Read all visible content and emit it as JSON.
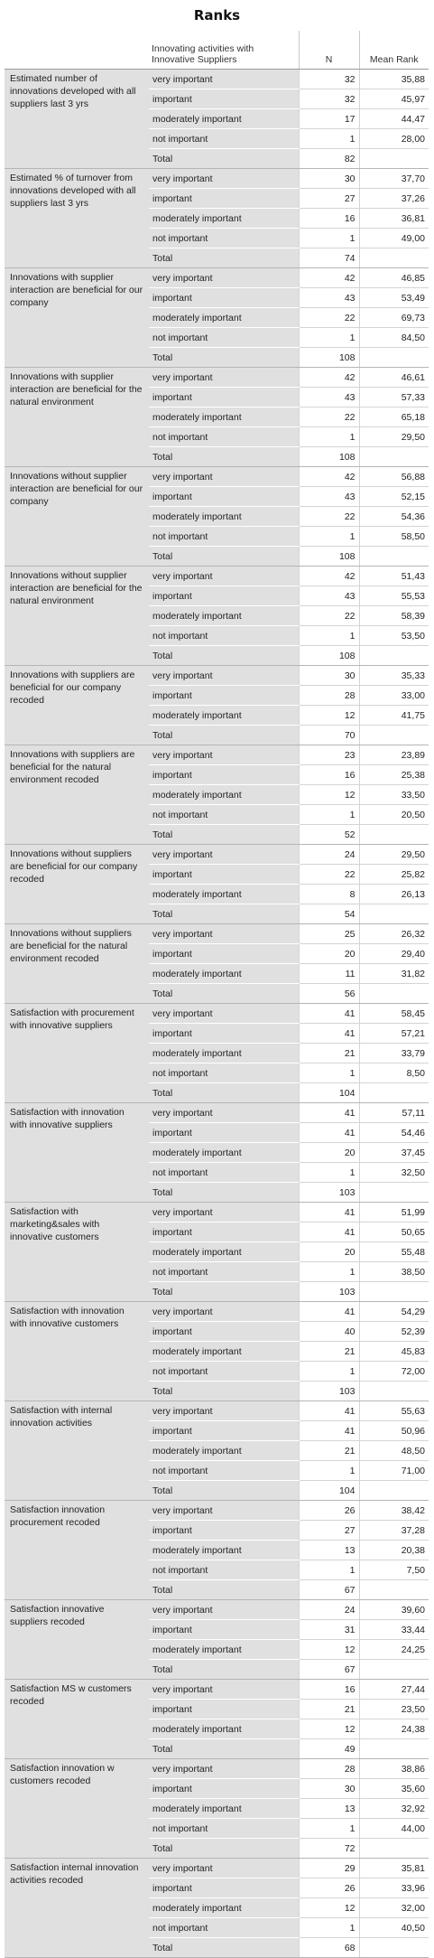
{
  "title": "Ranks",
  "header": {
    "group_label": "Innovating activities with Innovative Suppliers",
    "n_label": "N",
    "mean_rank_label": "Mean Rank"
  },
  "groups": [
    {
      "variable": "Estimated number of innovations developed with all suppliers last 3 yrs",
      "rows": [
        [
          "very important",
          "32",
          "35,88"
        ],
        [
          "important",
          "32",
          "45,97"
        ],
        [
          "moderately important",
          "17",
          "44,47"
        ],
        [
          "not important",
          "1",
          "28,00"
        ],
        [
          "Total",
          "82",
          ""
        ]
      ]
    },
    {
      "variable": "Estimated % of turnover from innovations developed with all suppliers last 3 yrs",
      "rows": [
        [
          "very important",
          "30",
          "37,70"
        ],
        [
          "important",
          "27",
          "37,26"
        ],
        [
          "moderately important",
          "16",
          "36,81"
        ],
        [
          "not important",
          "1",
          "49,00"
        ],
        [
          "Total",
          "74",
          ""
        ]
      ]
    },
    {
      "variable": "Innovations with supplier interaction are beneficial for our company",
      "rows": [
        [
          "very important",
          "42",
          "46,85"
        ],
        [
          "important",
          "43",
          "53,49"
        ],
        [
          "moderately important",
          "22",
          "69,73"
        ],
        [
          "not important",
          "1",
          "84,50"
        ],
        [
          "Total",
          "108",
          ""
        ]
      ]
    },
    {
      "variable": "Innovations with supplier interaction are beneficial for the natural environment",
      "rows": [
        [
          "very important",
          "42",
          "46,61"
        ],
        [
          "important",
          "43",
          "57,33"
        ],
        [
          "moderately important",
          "22",
          "65,18"
        ],
        [
          "not important",
          "1",
          "29,50"
        ],
        [
          "Total",
          "108",
          ""
        ]
      ]
    },
    {
      "variable": "Innovations without supplier interaction are beneficial for our company",
      "rows": [
        [
          "very important",
          "42",
          "56,88"
        ],
        [
          "important",
          "43",
          "52,15"
        ],
        [
          "moderately important",
          "22",
          "54,36"
        ],
        [
          "not important",
          "1",
          "58,50"
        ],
        [
          "Total",
          "108",
          ""
        ]
      ]
    },
    {
      "variable": "Innovations without supplier interaction are beneficial for the natural environment",
      "rows": [
        [
          "very important",
          "42",
          "51,43"
        ],
        [
          "important",
          "43",
          "55,53"
        ],
        [
          "moderately important",
          "22",
          "58,39"
        ],
        [
          "not important",
          "1",
          "53,50"
        ],
        [
          "Total",
          "108",
          ""
        ]
      ]
    },
    {
      "variable": "Innovations with suppliers are beneficial for our company recoded",
      "rows": [
        [
          "very important",
          "30",
          "35,33"
        ],
        [
          "important",
          "28",
          "33,00"
        ],
        [
          "moderately important",
          "12",
          "41,75"
        ],
        [
          "Total",
          "70",
          ""
        ]
      ]
    },
    {
      "variable": "Innovations with suppliers are beneficial for the natural environment recoded",
      "rows": [
        [
          "very important",
          "23",
          "23,89"
        ],
        [
          "important",
          "16",
          "25,38"
        ],
        [
          "moderately important",
          "12",
          "33,50"
        ],
        [
          "not important",
          "1",
          "20,50"
        ],
        [
          "Total",
          "52",
          ""
        ]
      ]
    },
    {
      "variable": "Innovations without suppliers are beneficial for our company recoded",
      "rows": [
        [
          "very important",
          "24",
          "29,50"
        ],
        [
          "important",
          "22",
          "25,82"
        ],
        [
          "moderately important",
          "8",
          "26,13"
        ],
        [
          "Total",
          "54",
          ""
        ]
      ]
    },
    {
      "variable": "Innovations without suppliers are beneficial for the natural environment recoded",
      "rows": [
        [
          "very important",
          "25",
          "26,32"
        ],
        [
          "important",
          "20",
          "29,40"
        ],
        [
          "moderately important",
          "11",
          "31,82"
        ],
        [
          "Total",
          "56",
          ""
        ]
      ]
    },
    {
      "variable": "Satisfaction with procurement with innovative suppliers",
      "rows": [
        [
          "very important",
          "41",
          "58,45"
        ],
        [
          "important",
          "41",
          "57,21"
        ],
        [
          "moderately important",
          "21",
          "33,79"
        ],
        [
          "not important",
          "1",
          "8,50"
        ],
        [
          "Total",
          "104",
          ""
        ]
      ]
    },
    {
      "variable": "Satisfaction with innovation with innovative suppliers",
      "rows": [
        [
          "very important",
          "41",
          "57,11"
        ],
        [
          "important",
          "41",
          "54,46"
        ],
        [
          "moderately important",
          "20",
          "37,45"
        ],
        [
          "not important",
          "1",
          "32,50"
        ],
        [
          "Total",
          "103",
          ""
        ]
      ]
    },
    {
      "variable": "Satisfaction with marketing&sales with innovative customers",
      "rows": [
        [
          "very important",
          "41",
          "51,99"
        ],
        [
          "important",
          "41",
          "50,65"
        ],
        [
          "moderately important",
          "20",
          "55,48"
        ],
        [
          "not important",
          "1",
          "38,50"
        ],
        [
          "Total",
          "103",
          ""
        ]
      ]
    },
    {
      "variable": "Satisfaction with innovation with innovative customers",
      "rows": [
        [
          "very important",
          "41",
          "54,29"
        ],
        [
          "important",
          "40",
          "52,39"
        ],
        [
          "moderately important",
          "21",
          "45,83"
        ],
        [
          "not important",
          "1",
          "72,00"
        ],
        [
          "Total",
          "103",
          ""
        ]
      ]
    },
    {
      "variable": "Satisfaction with internal innovation activities",
      "rows": [
        [
          "very important",
          "41",
          "55,63"
        ],
        [
          "important",
          "41",
          "50,96"
        ],
        [
          "moderately important",
          "21",
          "48,50"
        ],
        [
          "not important",
          "1",
          "71,00"
        ],
        [
          "Total",
          "104",
          ""
        ]
      ]
    },
    {
      "variable": "Satisfaction innovation procurement recoded",
      "rows": [
        [
          "very important",
          "26",
          "38,42"
        ],
        [
          "important",
          "27",
          "37,28"
        ],
        [
          "moderately important",
          "13",
          "20,38"
        ],
        [
          "not important",
          "1",
          "7,50"
        ],
        [
          "Total",
          "67",
          ""
        ]
      ]
    },
    {
      "variable": "Satisfaction innovative suppliers recoded",
      "rows": [
        [
          "very important",
          "24",
          "39,60"
        ],
        [
          "important",
          "31",
          "33,44"
        ],
        [
          "moderately important",
          "12",
          "24,25"
        ],
        [
          "Total",
          "67",
          ""
        ]
      ]
    },
    {
      "variable": "Satisfaction MS w customers recoded",
      "rows": [
        [
          "very important",
          "16",
          "27,44"
        ],
        [
          "important",
          "21",
          "23,50"
        ],
        [
          "moderately important",
          "12",
          "24,38"
        ],
        [
          "Total",
          "49",
          ""
        ]
      ]
    },
    {
      "variable": "Satisfaction innovation w customers recoded",
      "rows": [
        [
          "very important",
          "28",
          "38,86"
        ],
        [
          "important",
          "30",
          "35,60"
        ],
        [
          "moderately important",
          "13",
          "32,92"
        ],
        [
          "not important",
          "1",
          "44,00"
        ],
        [
          "Total",
          "72",
          ""
        ]
      ]
    },
    {
      "variable": "Satisfaction internal innovation activities recoded",
      "rows": [
        [
          "very important",
          "29",
          "35,81"
        ],
        [
          "important",
          "26",
          "33,96"
        ],
        [
          "moderately important",
          "12",
          "32,00"
        ],
        [
          "not important",
          "1",
          "40,50"
        ],
        [
          "Total",
          "68",
          ""
        ]
      ]
    }
  ]
}
